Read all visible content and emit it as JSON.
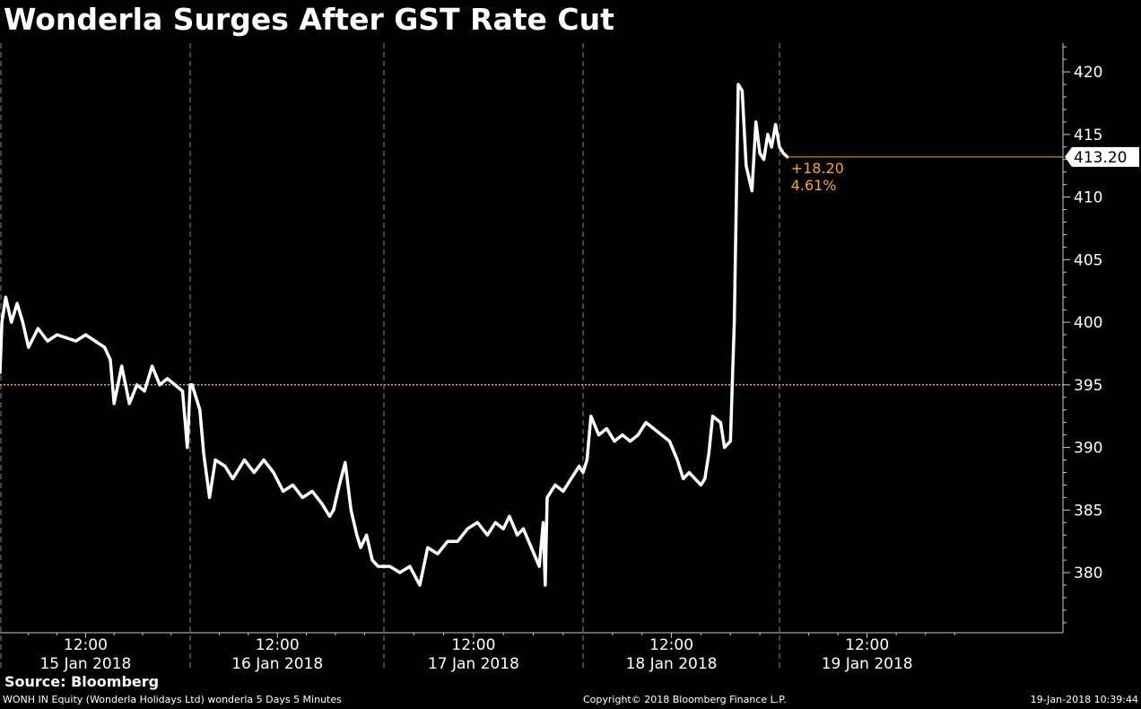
{
  "chart_data": {
    "type": "line",
    "title": "Wonderla Surges After GST Rate Cut",
    "series": [
      {
        "values": [
          [
            0.0,
            396
          ],
          [
            0.01,
            400
          ],
          [
            0.03,
            402
          ],
          [
            0.06,
            400
          ],
          [
            0.09,
            401.5
          ],
          [
            0.12,
            400
          ],
          [
            0.15,
            398
          ],
          [
            0.2,
            399.5
          ],
          [
            0.25,
            398.5
          ],
          [
            0.3,
            399
          ],
          [
            0.4,
            398.5
          ],
          [
            0.45,
            399
          ],
          [
            0.5,
            398.5
          ],
          [
            0.55,
            398
          ],
          [
            0.58,
            397
          ],
          [
            0.6,
            393.5
          ],
          [
            0.64,
            396.5
          ],
          [
            0.68,
            393.5
          ],
          [
            0.72,
            395
          ],
          [
            0.76,
            394.5
          ],
          [
            0.8,
            396.5
          ],
          [
            0.84,
            395
          ],
          [
            0.88,
            395.5
          ],
          [
            0.92,
            395
          ],
          [
            0.96,
            394.5
          ],
          [
            0.985,
            390
          ],
          [
            1.0,
            395
          ],
          [
            1.01,
            395
          ],
          [
            1.05,
            393
          ],
          [
            1.07,
            389.5
          ],
          [
            1.1,
            386
          ],
          [
            1.13,
            389
          ],
          [
            1.18,
            388.5
          ],
          [
            1.22,
            387.5
          ],
          [
            1.28,
            389
          ],
          [
            1.33,
            388
          ],
          [
            1.38,
            389
          ],
          [
            1.43,
            388
          ],
          [
            1.48,
            386.5
          ],
          [
            1.53,
            387
          ],
          [
            1.58,
            386
          ],
          [
            1.63,
            386.5
          ],
          [
            1.68,
            385.5
          ],
          [
            1.72,
            384.5
          ],
          [
            1.74,
            385
          ],
          [
            1.77,
            387
          ],
          [
            1.8,
            388.8
          ],
          [
            1.83,
            385
          ],
          [
            1.86,
            383
          ],
          [
            1.88,
            382
          ],
          [
            1.91,
            383
          ],
          [
            1.94,
            381
          ],
          [
            1.97,
            380.5
          ],
          [
            2.0,
            380.5
          ],
          [
            2.03,
            380.5
          ],
          [
            2.08,
            380
          ],
          [
            2.13,
            380.5
          ],
          [
            2.18,
            379
          ],
          [
            2.22,
            382
          ],
          [
            2.27,
            381.5
          ],
          [
            2.32,
            382.5
          ],
          [
            2.37,
            382.5
          ],
          [
            2.42,
            383.5
          ],
          [
            2.47,
            384
          ],
          [
            2.52,
            383
          ],
          [
            2.56,
            384
          ],
          [
            2.6,
            383.5
          ],
          [
            2.63,
            384.5
          ],
          [
            2.67,
            383
          ],
          [
            2.7,
            383.5
          ],
          [
            2.74,
            382
          ],
          [
            2.78,
            380.5
          ],
          [
            2.8,
            384
          ],
          [
            2.81,
            379
          ],
          [
            2.82,
            386
          ],
          [
            2.86,
            387
          ],
          [
            2.9,
            386.5
          ],
          [
            2.94,
            387.5
          ],
          [
            2.98,
            388.5
          ],
          [
            3.0,
            388
          ],
          [
            3.02,
            389
          ],
          [
            3.04,
            392.5
          ],
          [
            3.08,
            391
          ],
          [
            3.12,
            391.5
          ],
          [
            3.16,
            390.5
          ],
          [
            3.2,
            391
          ],
          [
            3.24,
            390.5
          ],
          [
            3.28,
            391
          ],
          [
            3.32,
            392
          ],
          [
            3.36,
            391.5
          ],
          [
            3.4,
            391
          ],
          [
            3.44,
            390.5
          ],
          [
            3.48,
            389
          ],
          [
            3.51,
            387.5
          ],
          [
            3.54,
            388
          ],
          [
            3.57,
            387.5
          ],
          [
            3.6,
            387
          ],
          [
            3.62,
            387.5
          ],
          [
            3.64,
            389.5
          ],
          [
            3.66,
            392.5
          ],
          [
            3.7,
            392
          ],
          [
            3.72,
            390
          ],
          [
            3.75,
            390.5
          ],
          [
            3.77,
            400
          ],
          [
            3.79,
            419
          ],
          [
            3.81,
            418.5
          ],
          [
            3.83,
            412.5
          ],
          [
            3.86,
            410.5
          ],
          [
            3.88,
            416
          ],
          [
            3.9,
            413.5
          ],
          [
            3.92,
            413
          ],
          [
            3.94,
            415
          ],
          [
            3.96,
            414
          ],
          [
            3.98,
            415.8
          ],
          [
            4.0,
            414
          ],
          [
            4.02,
            413.5
          ],
          [
            4.04,
            413.2
          ]
        ]
      }
    ],
    "x_labels": [
      {
        "time": "12:00",
        "date": "15 Jan 2018"
      },
      {
        "time": "12:00",
        "date": "16 Jan 2018"
      },
      {
        "time": "12:00",
        "date": "17 Jan 2018"
      },
      {
        "time": "12:00",
        "date": "18 Jan 2018"
      },
      {
        "time": "12:00",
        "date": "19 Jan 2018"
      }
    ],
    "yticks": [
      380,
      385,
      390,
      395,
      400,
      405,
      410,
      415,
      420
    ],
    "ylim": [
      375.2,
      422.3
    ],
    "reference_line": 395,
    "last_value_label": "413.20",
    "last_value": 413.2,
    "change_abs": "+18.20",
    "change_pct": "4.61%",
    "grid": "day separators dashed",
    "colors": {
      "line": "#ffffff",
      "reference": "#f5a623",
      "background": "#000000",
      "change_text": "#f5a623"
    }
  },
  "source": "Source: Bloomberg",
  "footer": {
    "left": "WONH IN Equity (Wonderla Holidays Ltd) wonderla 5 Days 5 Minutes",
    "center": "Copyright© 2018 Bloomberg Finance L.P.",
    "right": "19-Jan-2018 10:39:44"
  }
}
